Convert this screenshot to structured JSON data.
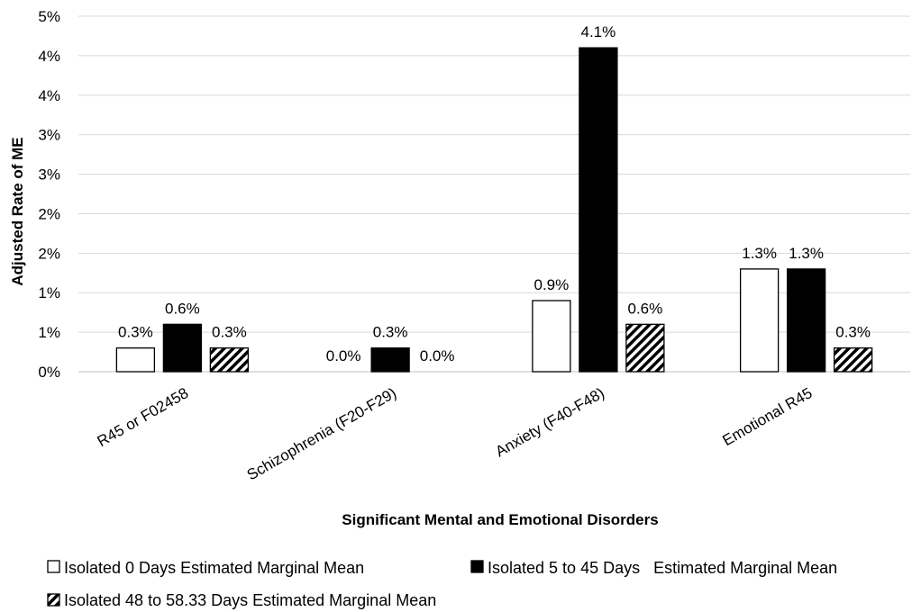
{
  "chart_data": {
    "type": "bar",
    "title": "",
    "xlabel": "Significant Mental and Emotional Disorders",
    "ylabel": "Adjusted Rate of ME",
    "ylim": [
      0,
      4.5
    ],
    "y_tick_values": [
      0,
      0.5,
      1.0,
      1.5,
      2.0,
      2.5,
      3.0,
      3.5,
      4.0,
      4.5
    ],
    "y_tick_labels": [
      "0%",
      "1%",
      "1%",
      "2%",
      "2%",
      "3%",
      "3%",
      "4%",
      "4%",
      "5%"
    ],
    "grid": true,
    "legend_position": "bottom",
    "categories": [
      "R45 or F02458",
      "Schizophrenia (F20-F29)",
      "Anxiety (F40-F48)",
      "Emotional R45"
    ],
    "series": [
      {
        "name": "Isolated 0 Days Estimated Marginal Mean",
        "fill": "white",
        "values": [
          0.3,
          0.0,
          0.9,
          1.3
        ],
        "labels": [
          "0.3%",
          "0.0%",
          "0.9%",
          "1.3%"
        ]
      },
      {
        "name": "Isolated 5 to 45 Days   Estimated Marginal Mean",
        "fill": "black",
        "values": [
          0.6,
          0.3,
          4.1,
          1.3
        ],
        "labels": [
          "0.6%",
          "0.3%",
          "4.1%",
          "1.3%"
        ]
      },
      {
        "name": "Isolated 48 to 58.33 Days Estimated Marginal Mean",
        "fill": "hatched",
        "values": [
          0.3,
          0.0,
          0.6,
          0.3
        ],
        "labels": [
          "0.3%",
          "0.0%",
          "0.6%",
          "0.3%"
        ]
      }
    ]
  },
  "colors": {
    "gridline": "#d9d9d9",
    "axis": "#bfbfbf",
    "bar_outline": "#000000"
  }
}
